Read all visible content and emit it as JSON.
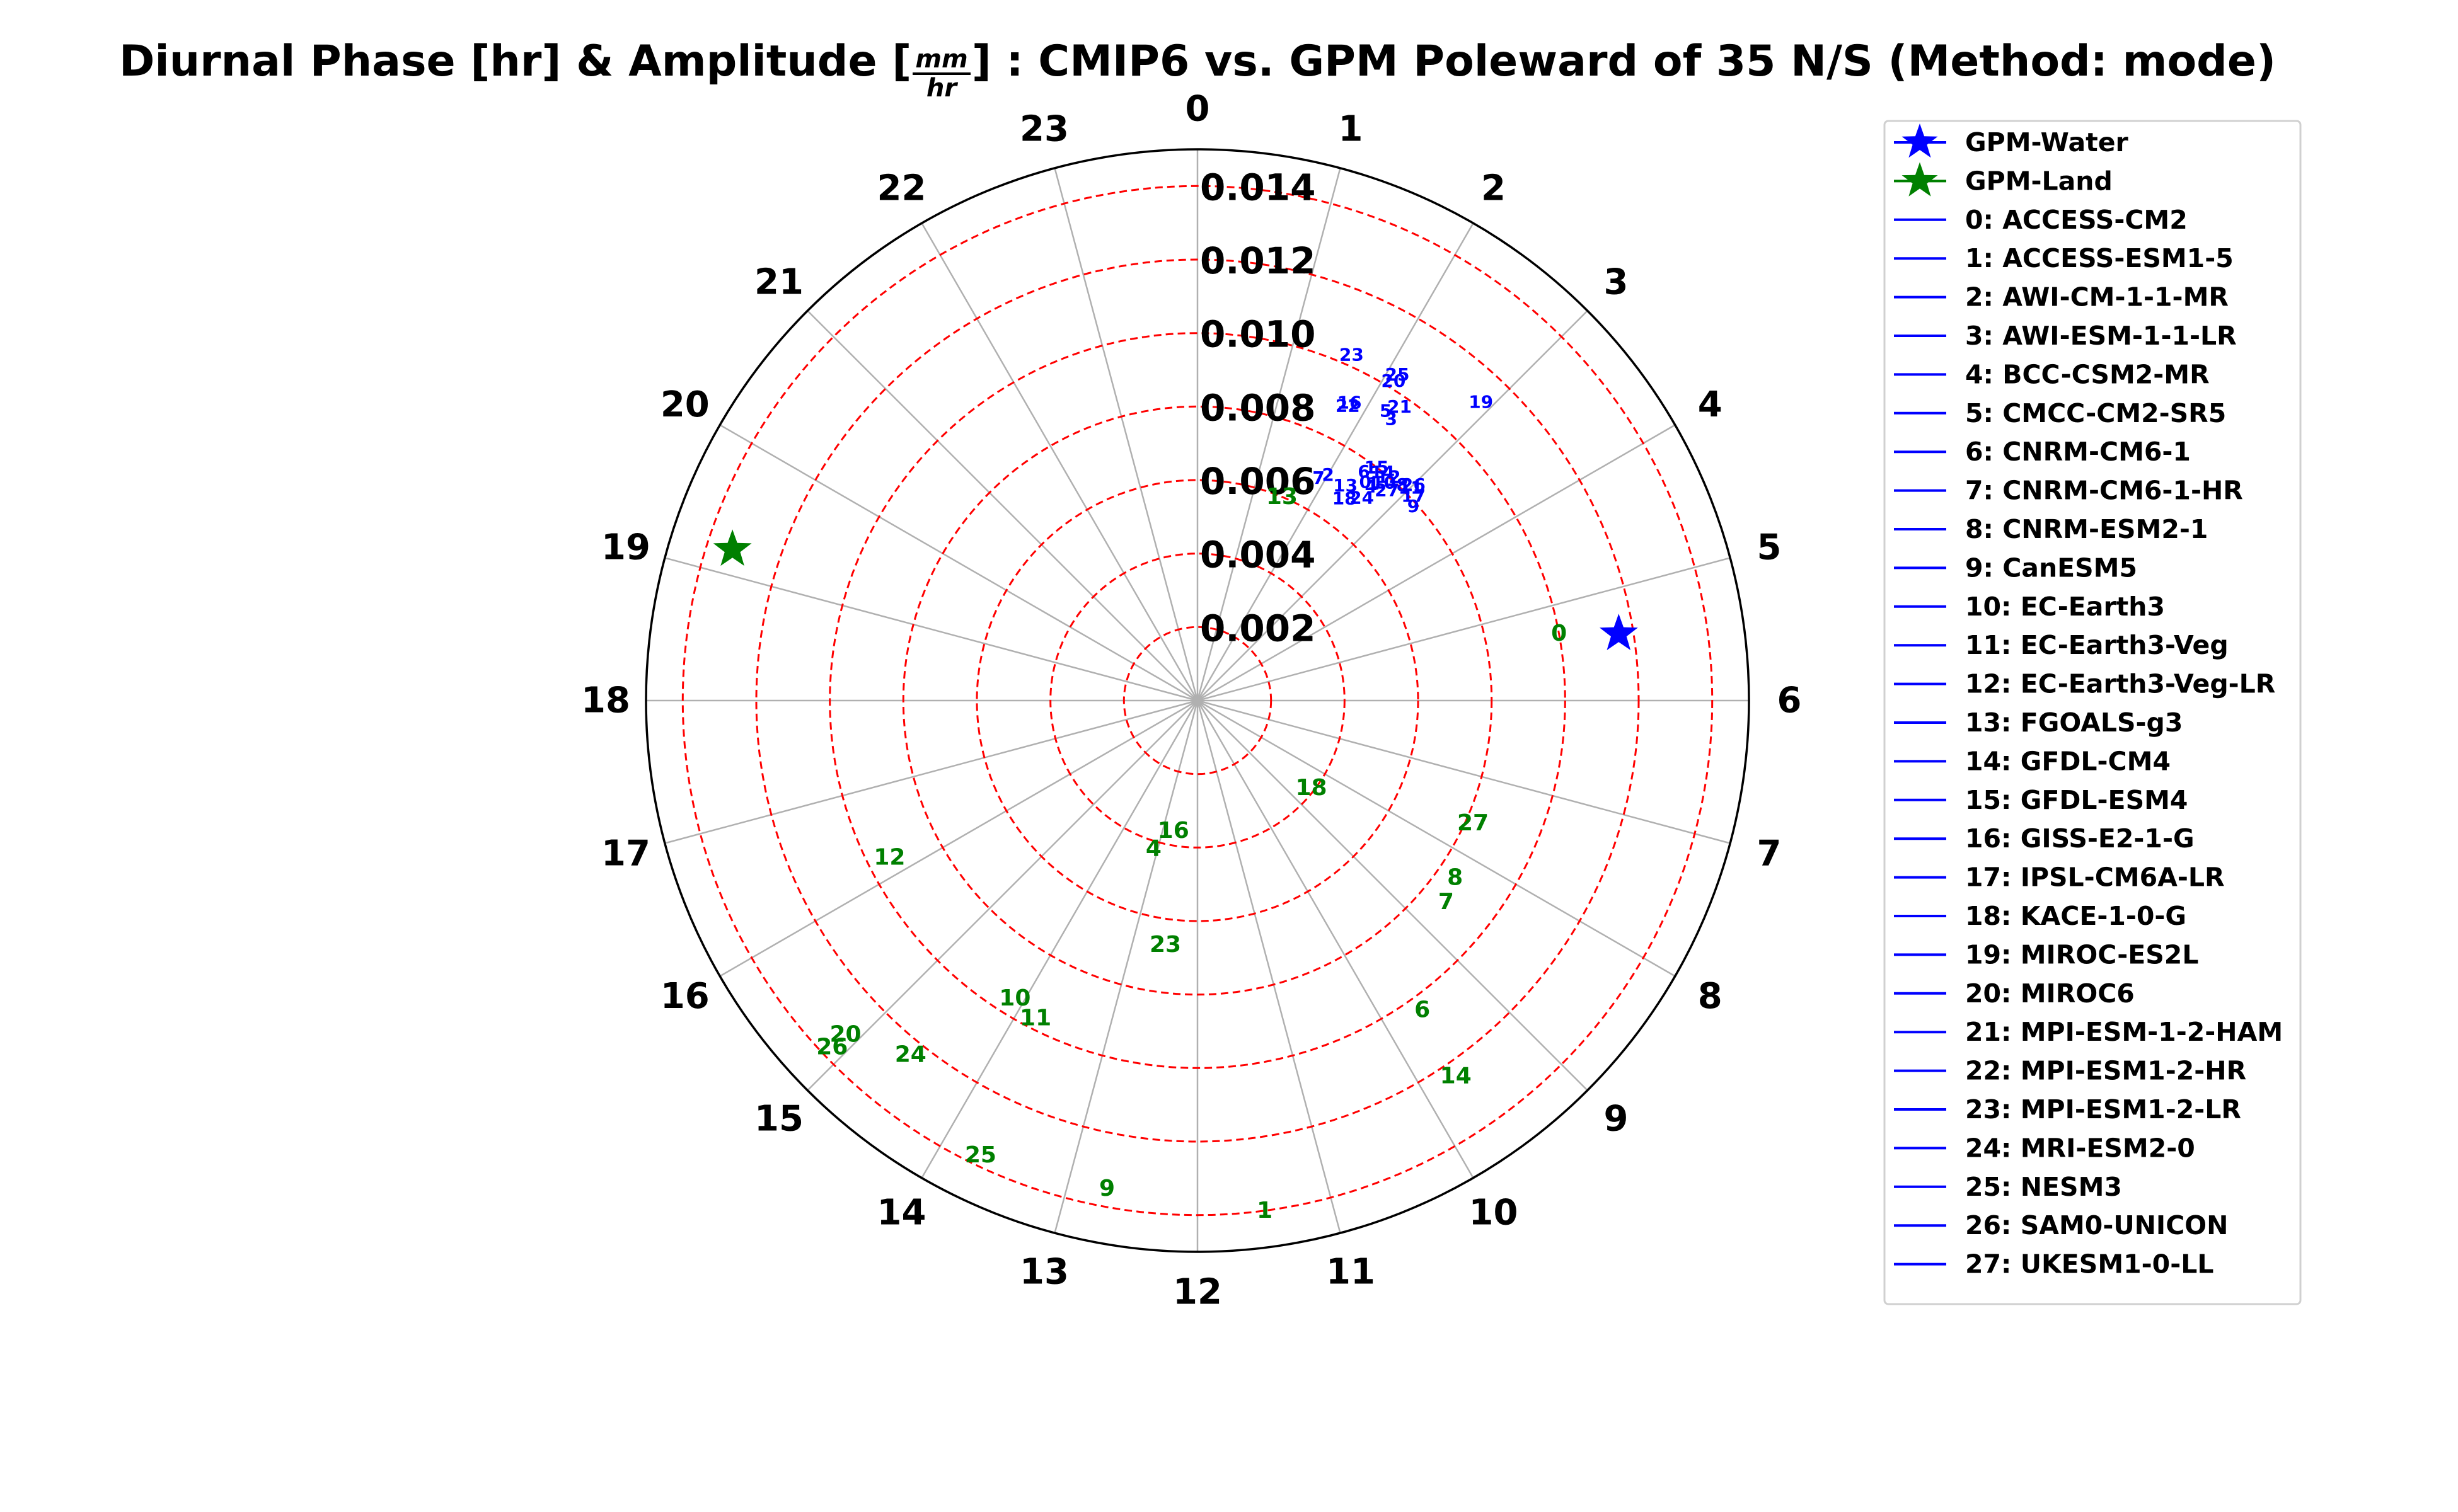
{
  "chart_data": {
    "type": "polar-scatter",
    "title_pre": "Diurnal Phase [hr] & Amplitude [",
    "title_unit_num": "mm",
    "title_unit_den": "hr",
    "title_post": "] : CMIP6 vs. GPM Poleward of 35 N/S (Method: mode)",
    "theta_unit": "hour",
    "theta_ticks": [
      "0",
      "1",
      "2",
      "3",
      "4",
      "5",
      "6",
      "7",
      "8",
      "9",
      "10",
      "11",
      "12",
      "13",
      "14",
      "15",
      "16",
      "17",
      "18",
      "19",
      "20",
      "21",
      "22",
      "23"
    ],
    "r_max": 0.015,
    "r_ticks": [
      0.002,
      0.004,
      0.006,
      0.008,
      0.01,
      0.012,
      0.014
    ],
    "r_tick_labels": [
      "0.002",
      "0.004",
      "0.006",
      "0.008",
      "0.010",
      "0.012",
      "0.014"
    ],
    "grid": true,
    "legend_position": "right",
    "colors": {
      "water": "#0000ff",
      "land": "#008000",
      "rings": "#ff0000",
      "spokes": "#b0b0b0"
    },
    "references": [
      {
        "name": "GPM-Water",
        "phase": 5.4,
        "amp": 0.0116,
        "color": "#0000ff"
      },
      {
        "name": "GPM-Land",
        "phase": 19.2,
        "amp": 0.0133,
        "color": "#008000"
      }
    ],
    "models": [
      "ACCESS-CM2",
      "ACCESS-ESM1-5",
      "AWI-CM-1-1-MR",
      "AWI-ESM-1-1-LR",
      "BCC-CSM2-MR",
      "CMCC-CM2-SR5",
      "CNRM-CM6-1",
      "CNRM-CM6-1-HR",
      "CNRM-ESM2-1",
      "CanESM5",
      "EC-Earth3",
      "EC-Earth3-Veg",
      "EC-Earth3-Veg-LR",
      "FGOALS-g3",
      "GFDL-CM4",
      "GFDL-ESM4",
      "GISS-E2-1-G",
      "IPSL-CM6A-LR",
      "KACE-1-0-G",
      "MIROC-ES2L",
      "MIROC6",
      "MPI-ESM-1-2-HAM",
      "MPI-ESM1-2-HR",
      "MPI-ESM1-2-LR",
      "MRI-ESM2-0",
      "NESM3",
      "SAM0-UNICON",
      "UKESM1-0-LL"
    ],
    "legend_labels": [
      "0: ACCESS-CM2",
      "1: ACCESS-ESM1-5",
      "2: AWI-CM-1-1-MR",
      "3: AWI-ESM-1-1-LR",
      "4: BCC-CSM2-MR",
      "5: CMCC-CM2-SR5",
      "6: CNRM-CM6-1",
      "7: CNRM-CM6-1-HR",
      "8: CNRM-ESM2-1",
      "9: CanESM5",
      "10: EC-Earth3",
      "11: EC-Earth3-Veg",
      "12: EC-Earth3-Veg-LR",
      "13: FGOALS-g3",
      "14: GFDL-CM4",
      "15: GFDL-ESM4",
      "16: GISS-E2-1-G",
      "17: IPSL-CM6A-LR",
      "18: KACE-1-0-G",
      "19: MIROC-ES2L",
      "20: MIROC6",
      "21: MPI-ESM-1-2-HAM",
      "22: MPI-ESM1-2-HR",
      "23: MPI-ESM1-2-LR",
      "24: MRI-ESM2-0",
      "25: NESM3",
      "26: SAM0-UNICON",
      "27: UKESM1-0-LL"
    ],
    "water_points": [
      {
        "label": "0",
        "phase": 2.5,
        "amp": 0.0075
      },
      {
        "label": "1",
        "phase": 2.6,
        "amp": 0.0076
      },
      {
        "label": "2",
        "phase": 2.0,
        "amp": 0.0071
      },
      {
        "label": "3",
        "phase": 2.3,
        "amp": 0.0093
      },
      {
        "label": "4",
        "phase": 2.6,
        "amp": 0.0075
      },
      {
        "label": "5",
        "phase": 2.2,
        "amp": 0.0094
      },
      {
        "label": "6",
        "phase": 2.4,
        "amp": 0.0077
      },
      {
        "label": "7",
        "phase": 1.9,
        "amp": 0.0069
      },
      {
        "label": "8",
        "phase": 2.9,
        "amp": 0.0081
      },
      {
        "label": "9",
        "phase": 3.2,
        "amp": 0.0079
      },
      {
        "label": "10",
        "phase": 2.7,
        "amp": 0.0078
      },
      {
        "label": "11",
        "phase": 3.0,
        "amp": 0.0082
      },
      {
        "label": "12",
        "phase": 2.7,
        "amp": 0.008
      },
      {
        "label": "13",
        "phase": 2.3,
        "amp": 0.0071
      },
      {
        "label": "14",
        "phase": 2.6,
        "amp": 0.008
      },
      {
        "label": "15",
        "phase": 2.5,
        "amp": 0.008
      },
      {
        "label": "16",
        "phase": 1.8,
        "amp": 0.0091
      },
      {
        "label": "17",
        "phase": 3.1,
        "amp": 0.0081
      },
      {
        "label": "18",
        "phase": 2.4,
        "amp": 0.0068
      },
      {
        "label": "19",
        "phase": 2.9,
        "amp": 0.0112
      },
      {
        "label": "20",
        "phase": 2.1,
        "amp": 0.0102
      },
      {
        "label": "21",
        "phase": 2.3,
        "amp": 0.0097
      },
      {
        "label": "22",
        "phase": 1.8,
        "amp": 0.009
      },
      {
        "label": "23",
        "phase": 1.6,
        "amp": 0.0103
      },
      {
        "label": "24",
        "phase": 2.6,
        "amp": 0.0071
      },
      {
        "label": "25",
        "phase": 2.1,
        "amp": 0.0104
      },
      {
        "label": "26",
        "phase": 3.0,
        "amp": 0.0083
      },
      {
        "label": "27",
        "phase": 2.8,
        "amp": 0.0077
      }
    ],
    "land_points": [
      {
        "label": "0",
        "phase": 5.3,
        "amp": 0.01
      },
      {
        "label": "1",
        "phase": 11.5,
        "amp": 0.014
      },
      {
        "label": "4",
        "phase": 13.1,
        "amp": 0.0042
      },
      {
        "label": "6",
        "phase": 9.6,
        "amp": 0.0104
      },
      {
        "label": "7",
        "phase": 8.6,
        "amp": 0.0087
      },
      {
        "label": "8",
        "phase": 8.3,
        "amp": 0.0085
      },
      {
        "label": "9",
        "phase": 12.7,
        "amp": 0.0135
      },
      {
        "label": "10",
        "phase": 14.1,
        "amp": 0.0095
      },
      {
        "label": "11",
        "phase": 13.8,
        "amp": 0.0097
      },
      {
        "label": "12",
        "phase": 16.2,
        "amp": 0.0094
      },
      {
        "label": "13",
        "phase": 1.5,
        "amp": 0.006
      },
      {
        "label": "14",
        "phase": 9.7,
        "amp": 0.0124
      },
      {
        "label": "16",
        "phase": 12.7,
        "amp": 0.0036
      },
      {
        "label": "18",
        "phase": 8.5,
        "amp": 0.0039
      },
      {
        "label": "20",
        "phase": 15.1,
        "amp": 0.0132
      },
      {
        "label": "23",
        "phase": 12.5,
        "amp": 0.0067
      },
      {
        "label": "24",
        "phase": 14.6,
        "amp": 0.0124
      },
      {
        "label": "25",
        "phase": 13.7,
        "amp": 0.0137
      },
      {
        "label": "26",
        "phase": 15.1,
        "amp": 0.0137
      },
      {
        "label": "27",
        "phase": 7.6,
        "amp": 0.0082
      }
    ]
  }
}
